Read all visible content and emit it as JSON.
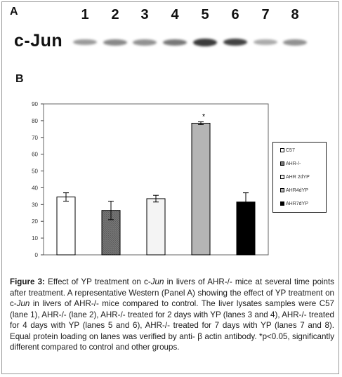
{
  "panel_a": {
    "letter": "A",
    "protein_label": "c-Jun",
    "lanes": [
      "1",
      "2",
      "3",
      "4",
      "5",
      "6",
      "7",
      "8"
    ],
    "band_intensity": [
      0.35,
      0.45,
      0.4,
      0.55,
      0.9,
      0.85,
      0.25,
      0.4
    ]
  },
  "panel_b": {
    "letter": "B"
  },
  "chart_data": {
    "type": "bar",
    "categories": [
      "C57",
      "AHR-/-",
      "AHR 2dYP",
      "AHR4dYP",
      "AHR7dYP"
    ],
    "values": [
      34.5,
      26.5,
      33.5,
      78.5,
      31.5
    ],
    "errors": [
      2.5,
      5.5,
      2.0,
      0.8,
      5.5
    ],
    "ylim": [
      0,
      90
    ],
    "yticks": [
      0,
      10,
      20,
      30,
      40,
      50,
      60,
      70,
      80,
      90
    ],
    "bar_colors": [
      "#ffffff",
      "#7a7a7a",
      "#f4f4f4",
      "#b5b5b5",
      "#000000"
    ],
    "annotations": [
      {
        "category": "AHR4dYP",
        "text": "*"
      }
    ],
    "legend": [
      "C57",
      "AHR-/-",
      "AHR 2dYP",
      "AHR4dYP",
      "AHR7dYP"
    ],
    "legend_position": "right",
    "grid": false
  },
  "caption": {
    "label": "Figure 3:",
    "seg1": " Effect of YP treatment on c-",
    "gene": "Jun",
    "seg2": " in livers of AHR-/- mice at several time points after treatment. A representative Western (Panel A) showing the effect of YP treatment on c-",
    "seg3": " in livers of AHR-/- mice compared to control. The liver lysates samples were C57 (lane 1), AHR-/- (lane 2), AHR-/- treated for 2 days with YP (lanes 3 and 4), AHR-/- treated for 4 days with YP (lanes 5 and 6), AHR-/- treated for 7 days with YP (lanes 7 and 8). Equal protein loading on lanes was verified by anti- β actin antibody. *p<0.05, significantly different compared to control and other groups."
  }
}
